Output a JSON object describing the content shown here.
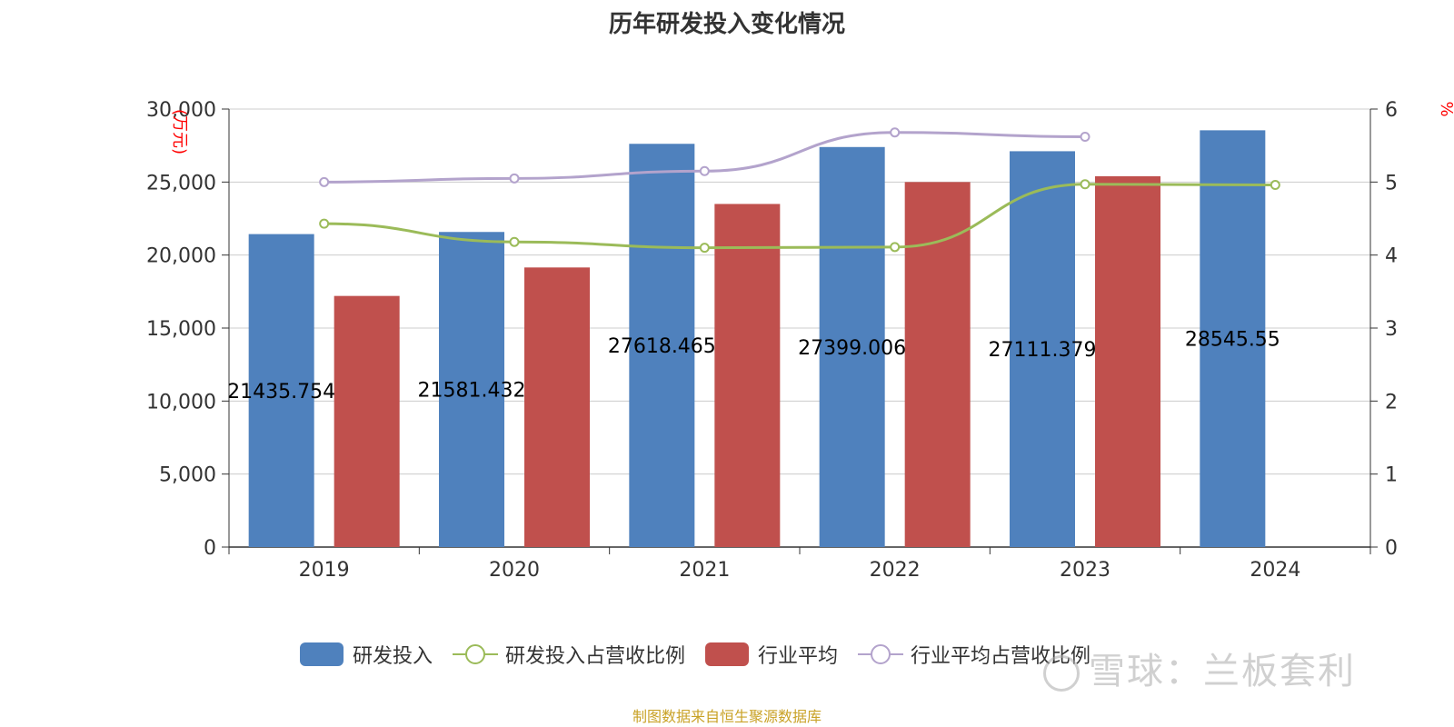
{
  "chart_data": {
    "type": "bar",
    "title": "历年研发投入变化情况",
    "categories": [
      "2019",
      "2020",
      "2021",
      "2022",
      "2023",
      "2024"
    ],
    "y_left": {
      "label": "(万元)",
      "ylim": [
        0,
        30000
      ],
      "ticks": [
        "0",
        "5,000",
        "10,000",
        "15,000",
        "20,000",
        "25,000",
        "30,000"
      ]
    },
    "y_right": {
      "label": "%",
      "ylim": [
        0,
        6
      ],
      "ticks": [
        "0",
        "1",
        "2",
        "3",
        "4",
        "5",
        "6"
      ]
    },
    "series": [
      {
        "name": "研发投入",
        "type": "bar",
        "axis": "left",
        "color": "#4f81bd",
        "values": [
          21435.754,
          21581.432,
          27618.465,
          27399.006,
          27111.379,
          28545.55
        ],
        "labels": [
          "21435.754",
          "21581.432",
          "27618.465",
          "27399.006",
          "27111.379",
          "28545.55"
        ]
      },
      {
        "name": "研发投入占营收比例",
        "type": "line",
        "axis": "right",
        "color": "#9bbb59",
        "values": [
          4.43,
          4.18,
          4.1,
          4.11,
          4.97,
          4.96
        ]
      },
      {
        "name": "行业平均",
        "type": "bar",
        "axis": "left",
        "color": "#c0504d",
        "values": [
          17200,
          19150,
          23500,
          25000,
          25400,
          null
        ]
      },
      {
        "name": "行业平均占营收比例",
        "type": "line",
        "axis": "right",
        "color": "#b3a3cc",
        "values": [
          5.0,
          5.05,
          5.15,
          5.68,
          5.62,
          null
        ]
      }
    ],
    "grid": true,
    "legend_position": "bottom"
  },
  "footer": {
    "source": "制图数据来自恒生聚源数据库",
    "watermark": "雪球：兰板套利"
  }
}
